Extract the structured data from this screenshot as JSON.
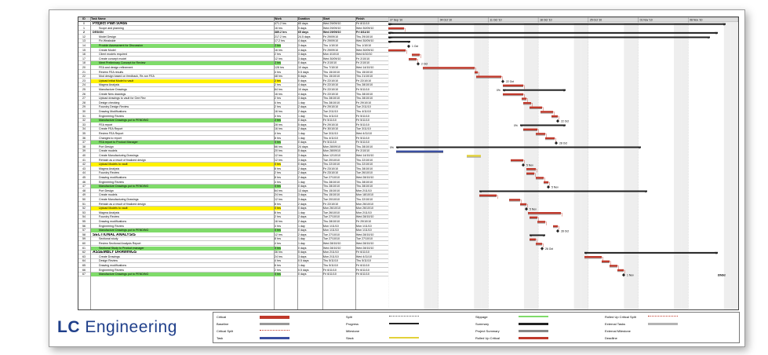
{
  "table": {
    "headers": {
      "id": "ID",
      "name": "Task Name",
      "work": "Work",
      "duration": "Duration",
      "start": "Start",
      "finish": "Finish"
    },
    "rows": [
      {
        "id": "0",
        "name": "Project Plan 50456",
        "work": "471.2 hrs",
        "dur": "65 days",
        "start": "Wed 29/09/10",
        "finish": "Fri 8/11/10",
        "style": "big"
      },
      {
        "id": "1",
        "name": "Scope and planning",
        "work": "16 hrs",
        "dur": "5 days",
        "start": "Wed 29/09/10",
        "finish": "Wed 30/09/10",
        "style": ""
      },
      {
        "id": "2",
        "name": "DESIGN",
        "work": "389.2 hrs",
        "dur": "65 days",
        "start": "Wed 29/09/10",
        "finish": "Fri 8/11/10",
        "style": "b"
      },
      {
        "id": "12",
        "name": "Model Design",
        "work": "217.2 hrs",
        "dur": "24.5 days",
        "start": "Fri 29/09/10",
        "finish": "Thu 29/10/10",
        "style": ""
      },
      {
        "id": "13",
        "name": "Fix Weakside",
        "work": "17.2 hrs",
        "dur": "4 days",
        "start": "Fri 29/09/10",
        "finish": "Wed 30/09/10",
        "style": ""
      },
      {
        "id": "14",
        "name": "Provide Assessment for Discussion",
        "work": "2 hrs",
        "dur": "3 days",
        "start": "Thu 1/10/10",
        "finish": "Thu 1/10/10",
        "style": "hlg"
      },
      {
        "id": "15",
        "name": "Create Model",
        "work": "16 hrs",
        "dur": "4 days",
        "start": "Fri 29/09/10",
        "finish": "Wed 30/09/10",
        "style": ""
      },
      {
        "id": "16",
        "name": "Client models required",
        "work": "2 hrs",
        "dur": "3 days",
        "start": "Mon 4/10/10",
        "finish": "Wed 6/10/10",
        "style": ""
      },
      {
        "id": "17",
        "name": "Create concept model",
        "work": "12 hrs",
        "dur": "3 days",
        "start": "Wed 30/09/10",
        "finish": "Fri 2/10/10",
        "style": ""
      },
      {
        "id": "18",
        "name": "Meet Preliminary Concept for Review",
        "work": "2 hrs",
        "dur": "0 days",
        "start": "Fri 2/10/10",
        "finish": "Fri 2/10/10",
        "style": "hlg"
      },
      {
        "id": "20",
        "name": "FEA and design refinement",
        "work": "128 hrs",
        "dur": "10 days",
        "start": "Thu 7/10/10",
        "finish": "Wed 14/10/10",
        "style": ""
      },
      {
        "id": "21",
        "name": "Review FEA results",
        "work": "4 hrs",
        "dur": "0.5 days",
        "start": "Thu 15/10/10",
        "finish": "Thu 15/10/10",
        "style": ""
      },
      {
        "id": "22",
        "name": "Mod design based on feedback, Re-run FEA",
        "work": "48 hrs",
        "dur": "5 days",
        "start": "Thu 15/10/10",
        "finish": "Thu 21/10/10",
        "style": ""
      },
      {
        "id": "23",
        "name": "Upload Initial Model to vault",
        "work": "2 hrs",
        "dur": "0 days",
        "start": "Fri 22/10/10",
        "finish": "Fri 22/10/10",
        "style": "hl"
      },
      {
        "id": "24",
        "name": "Magma Analysis",
        "work": "2 hrs",
        "dur": "4 days",
        "start": "Fri 22/10/10",
        "finish": "Thu 28/10/10",
        "style": ""
      },
      {
        "id": "25",
        "name": "Manufacture Drawings",
        "work": "64 hrs",
        "dur": "10 days",
        "start": "Fri 22/10/10",
        "finish": "Fri 5/11/10",
        "style": ""
      },
      {
        "id": "26",
        "name": "Create New drawings",
        "work": "16 hrs",
        "dur": "4 days",
        "start": "Fri 22/10/10",
        "finish": "Thu 28/10/10",
        "style": ""
      },
      {
        "id": "27",
        "name": "Upload drawings to vault for Gee Rev",
        "work": "2 hrs",
        "dur": "3 days",
        "start": "Thu 28/10/10",
        "finish": "Thu 28/10/10",
        "style": ""
      },
      {
        "id": "28",
        "name": "Design checking",
        "work": "4 hrs",
        "dur": "1 day",
        "start": "Thu 28/10/10",
        "finish": "Fri 29/10/10",
        "style": ""
      },
      {
        "id": "29",
        "name": "Foundry Design Review",
        "work": "2 hrs",
        "dur": "2 days",
        "start": "Fri 29/10/10",
        "finish": "Tue 2/11/10",
        "style": ""
      },
      {
        "id": "30",
        "name": "Drawing Modifications",
        "work": "16 hrs",
        "dur": "2 days",
        "start": "Tue 2/11/10",
        "finish": "Thu 4/11/10",
        "style": ""
      },
      {
        "id": "31",
        "name": "Engineering Review",
        "work": "4 hrs",
        "dur": "1 day",
        "start": "Thu 4/11/10",
        "finish": "Fri 5/11/10",
        "style": ""
      },
      {
        "id": "32",
        "name": "Manufacture Drawings put to PENDING",
        "work": "2 hrs",
        "dur": "0 days",
        "start": "Fri 5/11/10",
        "finish": "Fri 5/11/10",
        "style": "hlg"
      },
      {
        "id": "33",
        "name": "FEA report",
        "work": "28 hrs",
        "dur": "5 days",
        "start": "Fri 29/10/10",
        "finish": "Fri 5/11/10",
        "style": ""
      },
      {
        "id": "34",
        "name": "Create FEA Report",
        "work": "16 hrs",
        "dur": "2 days",
        "start": "Fri 30/10/10",
        "finish": "Tue 3/11/10",
        "style": ""
      },
      {
        "id": "35",
        "name": "Review FEA Report",
        "work": "4 hrs",
        "dur": "1 day",
        "start": "Tue 3/11/10",
        "finish": "Wed 4/11/10",
        "style": ""
      },
      {
        "id": "36",
        "name": "Changes to report",
        "work": "8 hrs",
        "dur": "1 day",
        "start": "Thu 4/11/10",
        "finish": "Fri 5/11/10",
        "style": ""
      },
      {
        "id": "37",
        "name": "FEA report to Product Manager",
        "work": "0 hrs",
        "dur": "0 days",
        "start": "Fri 5/11/10",
        "finish": "Fri 5/11/10",
        "style": "hlg"
      },
      {
        "id": "38",
        "name": "Port Design",
        "work": "66 hrs",
        "dur": "24 days",
        "start": "Mon 28/09/10",
        "finish": "Thu 28/10/10",
        "style": ""
      },
      {
        "id": "39",
        "name": "Create models",
        "work": "20 hrs",
        "dur": "5 days",
        "start": "Mon 28/09/10",
        "finish": "Fri 2/10/10",
        "style": ""
      },
      {
        "id": "40",
        "name": "Create Manufacturing Drawings",
        "work": "12 hrs",
        "dur": "3 days",
        "start": "Mon 12/10/10",
        "finish": "Wed 14/10/10",
        "style": ""
      },
      {
        "id": "41",
        "name": "Rehash as a result of finalized design",
        "work": "12 hrs",
        "dur": "3 days",
        "start": "Tue 20/10/10",
        "finish": "Thu 22/10/10",
        "style": ""
      },
      {
        "id": "42",
        "name": "Upload Models to vault",
        "work": "0 hrs",
        "dur": "0 days",
        "start": "Thu 22/10/10",
        "finish": "Thu 22/10/10",
        "style": "hl"
      },
      {
        "id": "43",
        "name": "Magma Analysis",
        "work": "8 hrs",
        "dur": "2 days",
        "start": "Fri 23/10/10",
        "finish": "Thu 28/10/10",
        "style": ""
      },
      {
        "id": "44",
        "name": "Foundry Review",
        "work": "2 hrs",
        "dur": "2 days",
        "start": "Fri 23/10/10",
        "finish": "Tue 26/10/10",
        "style": ""
      },
      {
        "id": "45",
        "name": "Drawing modifications",
        "work": "8 hrs",
        "dur": "2 days",
        "start": "Tue 27/10/10",
        "finish": "Wed 28/10/10",
        "style": ""
      },
      {
        "id": "46",
        "name": "Engineering Review",
        "work": "4 hrs",
        "dur": "1 day",
        "start": "Thu 28/10/10",
        "finish": "Thu 28/10/10",
        "style": ""
      },
      {
        "id": "47",
        "name": "Manufacture Drawings put to PENDING",
        "work": "0 hrs",
        "dur": "0 days",
        "start": "Thu 28/10/10",
        "finish": "Thu 28/10/10",
        "style": "hlg"
      },
      {
        "id": "48",
        "name": "Port Design",
        "work": "64 hrs",
        "dur": "13 days",
        "start": "Thu 15/10/10",
        "finish": "Mon 2/11/10",
        "style": ""
      },
      {
        "id": "49",
        "name": "Create models",
        "work": "24 hrs",
        "dur": "3 days",
        "start": "Thu 15/10/10",
        "finish": "Mon 18/10/10",
        "style": ""
      },
      {
        "id": "50",
        "name": "Create Manufacturing Drawings",
        "work": "12 hrs",
        "dur": "3 days",
        "start": "Tue 20/10/10",
        "finish": "Thu 22/10/10",
        "style": ""
      },
      {
        "id": "51",
        "name": "Rehash as a result of finalized design",
        "work": "8 hrs",
        "dur": "2 days",
        "start": "Fri 22/10/10",
        "finish": "Mon 26/10/10",
        "style": ""
      },
      {
        "id": "52",
        "name": "Upload Models to vault",
        "work": "0 hrs",
        "dur": "0 days",
        "start": "Mon 26/10/10",
        "finish": "Mon 26/10/10",
        "style": "hl"
      },
      {
        "id": "53",
        "name": "Magma Analysis",
        "work": "8 hrs",
        "dur": "1 day",
        "start": "Tue 26/10/10",
        "finish": "Mon 2/11/10",
        "style": ""
      },
      {
        "id": "54",
        "name": "Foundry Review",
        "work": "2 hrs",
        "dur": "2 days",
        "start": "Tue 27/10/10",
        "finish": "Wed 28/10/10",
        "style": ""
      },
      {
        "id": "55",
        "name": "Drawing modifications",
        "work": "16 hrs",
        "dur": "2 days",
        "start": "Thu 28/10/10",
        "finish": "Fri 29/10/10",
        "style": ""
      },
      {
        "id": "56",
        "name": "Engineering Review",
        "work": "4 hrs",
        "dur": "1 day",
        "start": "Mon 1/11/10",
        "finish": "Mon 1/11/10",
        "style": ""
      },
      {
        "id": "57",
        "name": "Manufacture Drawings put to PENDING",
        "work": "0 hrs",
        "dur": "0 days",
        "start": "Mon 1/11/10",
        "finish": "Mon 1/11/10",
        "style": "hlg"
      },
      {
        "id": "58",
        "name": "SECTIONAL ANALYSIS",
        "work": "12 hrs",
        "dur": "2 days",
        "start": "Tue 27/10/10",
        "finish": "Wed 28/10/10",
        "style": "big"
      },
      {
        "id": "59",
        "name": "Sectional study",
        "work": "8 hrs",
        "dur": "1 day",
        "start": "Tue 27/10/10",
        "finish": "Tue 27/10/10",
        "style": ""
      },
      {
        "id": "60",
        "name": "Review Sectional Analysis Report",
        "work": "4 hrs",
        "dur": "1 day",
        "start": "Wed 28/10/10",
        "finish": "Wed 28/10/10",
        "style": ""
      },
      {
        "id": "61",
        "name": "Sectional Study to Product manager",
        "work": "0 hrs",
        "dur": "0 days",
        "start": "Wed 28/10/10",
        "finish": "Wed 28/10/10",
        "style": "hlg"
      },
      {
        "id": "62",
        "name": "ASSEMBLY DRAWINGS",
        "work": "36 hrs",
        "dur": "5 days",
        "start": "Mon 2/11/10",
        "finish": "Fri 6/11/10",
        "style": "big"
      },
      {
        "id": "63",
        "name": "Create Drawings",
        "work": "24 hrs",
        "dur": "3 days",
        "start": "Mon 2/11/10",
        "finish": "Wed 4/11/10",
        "style": ""
      },
      {
        "id": "64",
        "name": "Design Review",
        "work": "4 hrs",
        "dur": "0.5 days",
        "start": "Thu 5/11/10",
        "finish": "Thu 5/11/10",
        "style": ""
      },
      {
        "id": "65",
        "name": "Drawing modifications",
        "work": "6 hrs",
        "dur": "1 day",
        "start": "Thu 5/11/10",
        "finish": "Fri 6/11/10",
        "style": ""
      },
      {
        "id": "66",
        "name": "Engineering Review",
        "work": "2 hrs",
        "dur": "0.5 days",
        "start": "Fri 6/11/10",
        "finish": "Fri 6/11/10",
        "style": ""
      },
      {
        "id": "67",
        "name": "Manufacture Drawings put to PENDING",
        "work": "0 hrs",
        "dur": "0 days",
        "start": "Fri 6/11/10",
        "finish": "Fri 6/11/10",
        "style": "hlg"
      }
    ]
  },
  "gantt": {
    "weeks": [
      "27 Sep '10",
      "04 Oct '10",
      "11 Oct '10",
      "18 Oct '10",
      "25 Oct '10",
      "01 Nov '10",
      "08 Nov '10"
    ],
    "milestones": [
      "1 Oct",
      "2 Oct",
      "22 Oct",
      "22 Oct",
      "28 Oct",
      "5 Nov",
      "5 Nov",
      "5 Nov",
      "28 Oct",
      "26 Oct",
      "1 Nov",
      "28 Oct",
      "8 Nov"
    ],
    "pct": [
      "0%",
      "47%",
      "0%",
      "0%",
      "0%",
      "0%",
      "0%"
    ]
  },
  "logo": {
    "bold": "LC",
    "rest": " Engineering"
  },
  "legend": {
    "col1": [
      "Critical",
      "Baseline",
      "Critical Split",
      "Task"
    ],
    "col2": [
      "Split",
      "Progress",
      "Milestone",
      "Slack"
    ],
    "col3": [
      "Slippage",
      "Summary",
      "Project Summary",
      "Rolled Up Critical"
    ],
    "col4": [
      "Rolled Up Critical Split",
      "External Tasks",
      "External Milestone",
      "Deadline"
    ]
  },
  "colors": {
    "critical": "#c0392b",
    "baseline": "#9a9a9a",
    "task": "#3b4fa0",
    "summary": "#222222",
    "slack": "#e3d23a",
    "highlight_yellow": "#fff200",
    "highlight_green": "#7fdb6a",
    "logo": "#1f3f8a"
  }
}
